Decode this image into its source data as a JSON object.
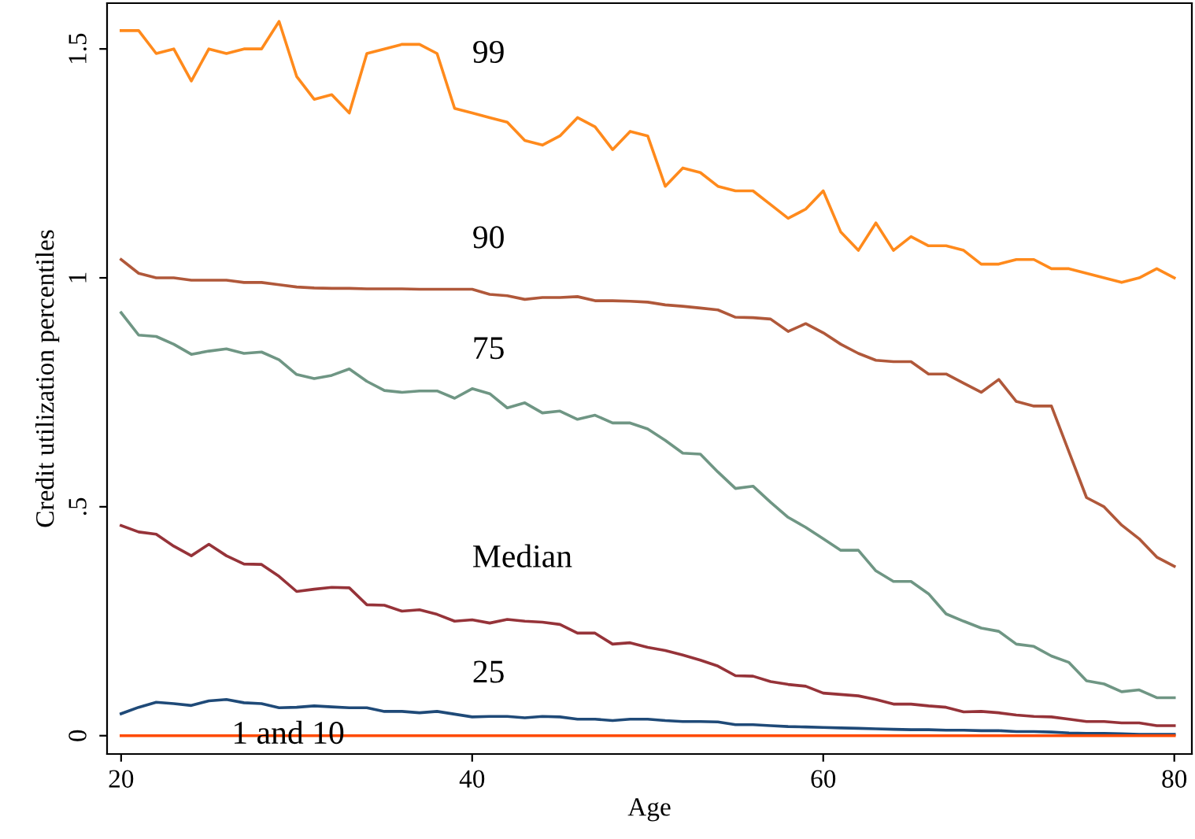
{
  "chart_data": {
    "type": "line",
    "xlabel": "Age",
    "ylabel": "Credit utilization percentiles",
    "x": [
      20,
      21,
      22,
      23,
      24,
      25,
      26,
      27,
      28,
      29,
      30,
      31,
      32,
      33,
      34,
      35,
      36,
      37,
      38,
      39,
      40,
      41,
      42,
      43,
      44,
      45,
      46,
      47,
      48,
      49,
      50,
      51,
      52,
      53,
      54,
      55,
      56,
      57,
      58,
      59,
      60,
      61,
      62,
      63,
      64,
      65,
      66,
      67,
      68,
      69,
      70,
      71,
      72,
      73,
      74,
      75,
      76,
      77,
      78,
      79,
      80
    ],
    "xlim": [
      19.2,
      81
    ],
    "xticks": [
      20,
      40,
      60,
      80
    ],
    "ylim": [
      -0.04,
      1.6
    ],
    "yticks": [
      0,
      {
        "value": 0.5,
        "label": ".5"
      },
      1,
      1.5
    ],
    "grid": false,
    "legend": false,
    "series": [
      {
        "name": "99",
        "color": "#ff8a1c",
        "values": [
          1.54,
          1.54,
          1.49,
          1.5,
          1.43,
          1.5,
          1.49,
          1.5,
          1.5,
          1.56,
          1.44,
          1.39,
          1.4,
          1.36,
          1.49,
          1.5,
          1.51,
          1.51,
          1.49,
          1.37,
          1.36,
          1.35,
          1.34,
          1.3,
          1.29,
          1.31,
          1.35,
          1.33,
          1.28,
          1.32,
          1.31,
          1.2,
          1.24,
          1.23,
          1.2,
          1.19,
          1.19,
          1.16,
          1.13,
          1.15,
          1.19,
          1.1,
          1.06,
          1.12,
          1.06,
          1.09,
          1.07,
          1.07,
          1.06,
          1.03,
          1.03,
          1.04,
          1.04,
          1.02,
          1.02,
          1.01,
          1.0,
          0.99,
          1.0,
          1.02,
          1.0
        ]
      },
      {
        "name": "90",
        "color": "#b0583a",
        "values": [
          1.04,
          1.01,
          1.0,
          1.0,
          0.995,
          0.995,
          0.995,
          0.99,
          0.99,
          0.985,
          0.98,
          0.978,
          0.977,
          0.977,
          0.976,
          0.976,
          0.976,
          0.975,
          0.975,
          0.975,
          0.975,
          0.964,
          0.961,
          0.953,
          0.957,
          0.957,
          0.959,
          0.95,
          0.95,
          0.949,
          0.947,
          0.941,
          0.938,
          0.934,
          0.93,
          0.914,
          0.913,
          0.91,
          0.883,
          0.9,
          0.88,
          0.855,
          0.835,
          0.82,
          0.817,
          0.817,
          0.79,
          0.79,
          0.77,
          0.75,
          0.778,
          0.73,
          0.72,
          0.72,
          0.62,
          0.52,
          0.5,
          0.46,
          0.43,
          0.39,
          0.37
        ]
      },
      {
        "name": "75",
        "color": "#6f9684",
        "values": [
          0.924,
          0.875,
          0.872,
          0.855,
          0.833,
          0.84,
          0.845,
          0.835,
          0.838,
          0.821,
          0.789,
          0.78,
          0.787,
          0.801,
          0.774,
          0.754,
          0.75,
          0.753,
          0.753,
          0.737,
          0.758,
          0.747,
          0.716,
          0.727,
          0.705,
          0.709,
          0.691,
          0.7,
          0.683,
          0.683,
          0.67,
          0.645,
          0.617,
          0.615,
          0.576,
          0.54,
          0.545,
          0.51,
          0.477,
          0.455,
          0.43,
          0.405,
          0.405,
          0.36,
          0.337,
          0.337,
          0.31,
          0.266,
          0.25,
          0.235,
          0.228,
          0.2,
          0.195,
          0.174,
          0.16,
          0.12,
          0.113,
          0.096,
          0.1,
          0.083,
          0.083
        ]
      },
      {
        "name": "Median",
        "color": "#963339",
        "values": [
          0.459,
          0.445,
          0.44,
          0.414,
          0.393,
          0.418,
          0.393,
          0.375,
          0.374,
          0.348,
          0.315,
          0.32,
          0.324,
          0.323,
          0.286,
          0.285,
          0.272,
          0.275,
          0.265,
          0.25,
          0.253,
          0.246,
          0.254,
          0.25,
          0.248,
          0.243,
          0.224,
          0.224,
          0.2,
          0.203,
          0.193,
          0.186,
          0.176,
          0.165,
          0.152,
          0.131,
          0.13,
          0.118,
          0.112,
          0.108,
          0.093,
          0.09,
          0.087,
          0.079,
          0.069,
          0.069,
          0.065,
          0.062,
          0.052,
          0.053,
          0.05,
          0.045,
          0.042,
          0.041,
          0.036,
          0.031,
          0.031,
          0.028,
          0.028,
          0.022,
          0.022
        ]
      },
      {
        "name": "25",
        "color": "#1f4a78",
        "values": [
          0.048,
          0.062,
          0.073,
          0.07,
          0.066,
          0.076,
          0.079,
          0.072,
          0.07,
          0.061,
          0.062,
          0.065,
          0.063,
          0.061,
          0.061,
          0.053,
          0.053,
          0.05,
          0.053,
          0.047,
          0.041,
          0.042,
          0.042,
          0.039,
          0.042,
          0.041,
          0.036,
          0.036,
          0.033,
          0.036,
          0.036,
          0.033,
          0.031,
          0.031,
          0.03,
          0.024,
          0.024,
          0.022,
          0.02,
          0.019,
          0.018,
          0.017,
          0.016,
          0.015,
          0.014,
          0.013,
          0.013,
          0.012,
          0.012,
          0.011,
          0.011,
          0.009,
          0.009,
          0.008,
          0.006,
          0.005,
          0.005,
          0.004,
          0.003,
          0.003,
          0.003
        ]
      },
      {
        "name": "1 and 10",
        "color": "#ff4a00",
        "values": [
          0,
          0,
          0,
          0,
          0,
          0,
          0,
          0,
          0,
          0,
          0,
          0,
          0,
          0,
          0,
          0,
          0,
          0,
          0,
          0,
          0,
          0,
          0,
          0,
          0,
          0,
          0,
          0,
          0,
          0,
          0,
          0,
          0,
          0,
          0,
          0,
          0,
          0,
          0,
          0,
          0,
          0,
          0,
          0,
          0,
          0,
          0,
          0,
          0,
          0,
          0,
          0,
          0,
          0,
          0,
          0,
          0,
          0,
          0,
          0,
          0
        ]
      }
    ]
  }
}
